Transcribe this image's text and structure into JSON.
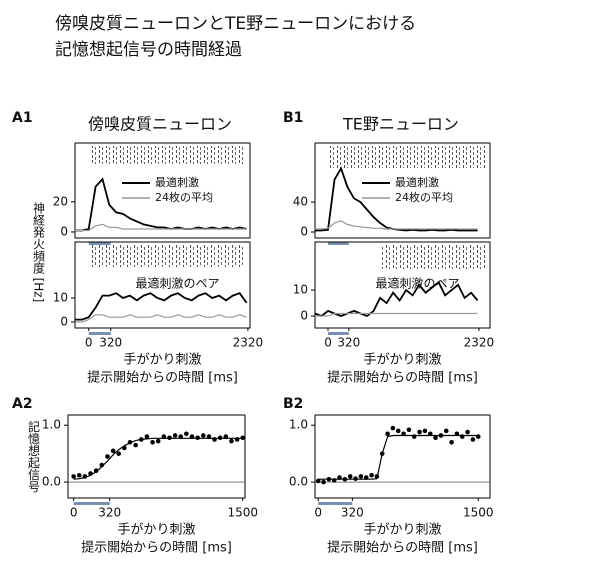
{
  "figure": {
    "title_lines": [
      "傍嗅皮質ニューロンとTE野ニューロンにおける",
      "記憶想起信号の時間経過"
    ],
    "panel_labels": [
      "A1",
      "B1",
      "A2",
      "B2"
    ],
    "column_titles": [
      "傍嗅皮質ニューロン",
      "TE野ニューロン"
    ],
    "ylabel": "神経発火頻度 [Hz]"
  },
  "chart_data": [
    {
      "type": "line",
      "xlim": [
        -200,
        2350
      ],
      "ylim": [
        -4,
        59
      ],
      "yticks": [
        0,
        20
      ],
      "stimulus_bar": [
        0,
        320
      ],
      "x": [
        -200,
        -100,
        0,
        100,
        200,
        300,
        400,
        500,
        600,
        700,
        800,
        900,
        1000,
        1100,
        1200,
        1300,
        1400,
        1500,
        1600,
        1700,
        1800,
        1900,
        2000,
        2100,
        2200,
        2300
      ],
      "series": [
        {
          "name": "最適刺激",
          "color": "#000000",
          "values": [
            1,
            1,
            2,
            30,
            35,
            18,
            13,
            12,
            9,
            7,
            5,
            4,
            3,
            3,
            2,
            3,
            2,
            2,
            3,
            2,
            3,
            2,
            3,
            2,
            3,
            2
          ]
        },
        {
          "name": "24枚の平均",
          "color": "#999999",
          "values": [
            1,
            1,
            1,
            4,
            5,
            3,
            3,
            2,
            2,
            2,
            2,
            2,
            2,
            2,
            2,
            2,
            2,
            2,
            2,
            2,
            2,
            2,
            2,
            2,
            2,
            2
          ]
        }
      ]
    },
    {
      "type": "line",
      "xlim": [
        -200,
        2350
      ],
      "ylim": [
        -2.5,
        33.3
      ],
      "yticks": [
        0,
        10
      ],
      "xticks": [
        0,
        320,
        2320
      ],
      "stimulus_bar": [
        0,
        320
      ],
      "annotation": "最適刺激のペア",
      "xlabel": [
        "手がかり刺激",
        "提示開始からの時間 [ms]"
      ],
      "x": [
        -200,
        -100,
        0,
        100,
        200,
        300,
        400,
        500,
        600,
        700,
        800,
        900,
        1000,
        1100,
        1200,
        1300,
        1400,
        1500,
        1600,
        1700,
        1800,
        1900,
        2000,
        2100,
        2200,
        2300
      ],
      "series": [
        {
          "color": "#000000",
          "values": [
            1,
            1,
            2,
            6,
            11,
            11,
            12,
            10,
            11,
            9,
            11,
            12,
            10,
            9,
            11,
            12,
            10,
            9,
            11,
            12,
            10,
            11,
            9,
            11,
            12,
            8
          ]
        },
        {
          "color": "#999999",
          "values": [
            0,
            0,
            1,
            3,
            3,
            2,
            2,
            2,
            3,
            2,
            2,
            2,
            3,
            2,
            2,
            3,
            2,
            2,
            3,
            2,
            2,
            3,
            2,
            2,
            3,
            2
          ]
        }
      ]
    },
    {
      "type": "line",
      "xlim": [
        -200,
        2490
      ],
      "ylim": [
        -8,
        119
      ],
      "yticks": [
        0,
        40
      ],
      "stimulus_bar": [
        0,
        320
      ],
      "x": [
        -200,
        -100,
        0,
        100,
        200,
        300,
        400,
        500,
        600,
        700,
        800,
        900,
        1000,
        1100,
        1200,
        1300,
        1400,
        1500,
        1600,
        1700,
        1800,
        1900,
        2000,
        2100,
        2200,
        2300
      ],
      "series": [
        {
          "name": "最適刺激",
          "color": "#000000",
          "values": [
            2,
            2,
            3,
            70,
            85,
            60,
            45,
            40,
            30,
            20,
            12,
            6,
            4,
            3,
            2,
            3,
            2,
            2,
            3,
            2,
            2,
            3,
            2,
            2,
            2,
            2
          ]
        },
        {
          "name": "24枚の平均",
          "color": "#999999",
          "values": [
            4,
            4,
            5,
            12,
            15,
            10,
            8,
            7,
            6,
            5,
            5,
            4,
            4,
            4,
            4,
            4,
            4,
            4,
            4,
            4,
            4,
            4,
            4,
            4,
            4,
            4
          ]
        }
      ]
    },
    {
      "type": "line",
      "xlim": [
        -200,
        2490
      ],
      "ylim": [
        -4.6,
        28.5
      ],
      "yticks": [
        0,
        10
      ],
      "xticks": [
        0,
        320,
        2320
      ],
      "stimulus_bar": [
        0,
        320
      ],
      "annotation": "最適刺激のペア",
      "xlabel": [
        "手がかり刺激",
        "提示開始からの時間 [ms]"
      ],
      "x": [
        -200,
        -100,
        0,
        100,
        200,
        300,
        400,
        500,
        600,
        700,
        800,
        900,
        1000,
        1100,
        1200,
        1300,
        1400,
        1500,
        1600,
        1700,
        1800,
        1900,
        2000,
        2100,
        2200,
        2300
      ],
      "series": [
        {
          "color": "#000000",
          "values": [
            1,
            0,
            2,
            1,
            0,
            1,
            2,
            1,
            0,
            2,
            7,
            5,
            9,
            6,
            10,
            8,
            12,
            9,
            11,
            13,
            8,
            10,
            12,
            7,
            9,
            6
          ]
        },
        {
          "color": "#999999",
          "values": [
            0,
            0,
            0,
            1,
            1,
            1,
            1,
            1,
            1,
            1,
            1,
            1,
            1,
            1,
            1,
            1,
            1,
            1,
            1,
            1,
            1,
            1,
            1,
            1,
            1,
            1
          ]
        }
      ]
    },
    {
      "type": "scatter",
      "xlim": [
        -50,
        1520
      ],
      "ylim": [
        -0.28,
        1.18
      ],
      "zero_line": true,
      "ylabel": "記憶想起信号",
      "yticks": [
        {
          "value": 0,
          "label": "0.0"
        },
        {
          "value": 1,
          "label": "1.0"
        }
      ],
      "xticks": [
        0,
        320,
        1500
      ],
      "stimulus_bar": [
        0,
        320
      ],
      "xlabel": [
        "手がかり刺激",
        "提示開始からの時間 [ms]"
      ],
      "x": [
        0,
        50,
        100,
        150,
        200,
        250,
        300,
        350,
        400,
        450,
        500,
        550,
        600,
        650,
        700,
        750,
        800,
        850,
        900,
        950,
        1000,
        1050,
        1100,
        1150,
        1200,
        1250,
        1300,
        1350,
        1400,
        1450,
        1500
      ],
      "points": {
        "color": "#000000",
        "values": [
          0.1,
          0.12,
          0.1,
          0.15,
          0.2,
          0.3,
          0.45,
          0.55,
          0.5,
          0.6,
          0.7,
          0.65,
          0.75,
          0.8,
          0.7,
          0.72,
          0.8,
          0.78,
          0.82,
          0.8,
          0.85,
          0.8,
          0.78,
          0.82,
          0.8,
          0.75,
          0.78,
          0.8,
          0.72,
          0.75,
          0.78
        ]
      },
      "fit": {
        "color": "#000000",
        "values": [
          0.05,
          0.06,
          0.08,
          0.12,
          0.18,
          0.27,
          0.37,
          0.48,
          0.57,
          0.64,
          0.69,
          0.73,
          0.75,
          0.76,
          0.77,
          0.77,
          0.77,
          0.77,
          0.77,
          0.77,
          0.77,
          0.77,
          0.77,
          0.77,
          0.77,
          0.77,
          0.77,
          0.77,
          0.77,
          0.77,
          0.77
        ]
      }
    },
    {
      "type": "scatter",
      "xlim": [
        -30,
        1610
      ],
      "ylim": [
        -0.28,
        1.18
      ],
      "zero_line": true,
      "yticks": [
        {
          "value": 0,
          "label": "0.0"
        },
        {
          "value": 1,
          "label": "1.0"
        }
      ],
      "xticks": [
        0,
        320,
        1500
      ],
      "stimulus_bar": [
        0,
        320
      ],
      "xlabel": [
        "手がかり刺激",
        "提示開始からの時間 [ms]"
      ],
      "x": [
        0,
        50,
        100,
        150,
        200,
        250,
        300,
        350,
        400,
        450,
        500,
        550,
        600,
        650,
        700,
        750,
        800,
        850,
        900,
        950,
        1000,
        1050,
        1100,
        1150,
        1200,
        1250,
        1300,
        1350,
        1400,
        1450,
        1500
      ],
      "points": {
        "color": "#000000",
        "values": [
          0.02,
          0,
          0.05,
          0.03,
          0.08,
          0.05,
          0.1,
          0.06,
          0.1,
          0.08,
          0.12,
          0.1,
          0.5,
          0.85,
          0.95,
          0.9,
          0.85,
          0.92,
          0.8,
          0.88,
          0.9,
          0.85,
          0.78,
          0.82,
          0.9,
          0.7,
          0.85,
          0.8,
          0.88,
          0.75,
          0.8
        ]
      },
      "fit": {
        "color": "#000000",
        "values": [
          0.05,
          0.05,
          0.05,
          0.05,
          0.05,
          0.05,
          0.05,
          0.05,
          0.05,
          0.05,
          0.05,
          0.06,
          0.5,
          0.8,
          0.82,
          0.82,
          0.82,
          0.82,
          0.82,
          0.82,
          0.82,
          0.82,
          0.82,
          0.82,
          0.82,
          0.82,
          0.82,
          0.82,
          0.82,
          0.82,
          0.82
        ]
      }
    }
  ]
}
